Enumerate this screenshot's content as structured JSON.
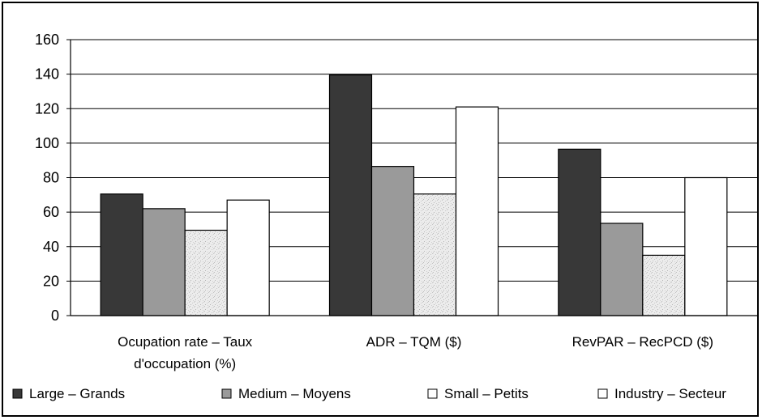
{
  "chart_data": {
    "type": "bar",
    "categories": [
      [
        "Ocupation rate – Taux",
        "d'occupation (%)"
      ],
      [
        "ADR – TQM ($)"
      ],
      [
        "RevPAR – RecPCD ($)"
      ]
    ],
    "series": [
      {
        "name": "Large – Grands",
        "values": [
          70.5,
          139.5,
          96.5
        ],
        "color": "#383838",
        "pattern": "solid"
      },
      {
        "name": "Medium – Moyens",
        "values": [
          62,
          86.5,
          53.5
        ],
        "color": "#9a9a9a",
        "pattern": "solid"
      },
      {
        "name": "Small – Petits",
        "values": [
          49.5,
          70.5,
          35
        ],
        "color": "#e6e6e6",
        "pattern": "speckle"
      },
      {
        "name": "Industry – Secteur",
        "values": [
          67,
          121,
          80
        ],
        "color": "#ffffff",
        "pattern": "solid"
      }
    ],
    "ylim": [
      0,
      160
    ],
    "yticks": [
      0,
      20,
      40,
      60,
      80,
      100,
      120,
      140,
      160
    ],
    "grid": true,
    "legend_position": "bottom",
    "title": "",
    "xlabel": "",
    "ylabel": ""
  }
}
